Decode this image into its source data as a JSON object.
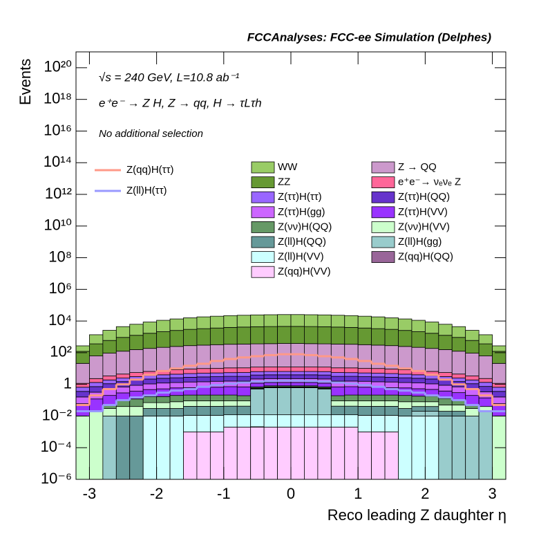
{
  "chart_data": {
    "type": "stacked_histogram",
    "title": "FCCAnalyses: FCC-ee Simulation (Delphes)",
    "annotations": [
      "√s = 240 GeV, L=10.8 ab⁻¹",
      "e⁺e⁻ → Z H, Z → qq, H → τLτh",
      "No additional selection"
    ],
    "xlabel": "Reco leading Z daughter η",
    "ylabel": "Events",
    "log_y": true,
    "bins": [
      -3.2,
      -3,
      -2.8,
      -2.6,
      -2.4,
      -2.2,
      -2,
      -1.8,
      -1.6,
      -1.4,
      -1.2,
      -1,
      -0.8,
      -0.6,
      -0.4,
      -0.2,
      0,
      0.2,
      0.4,
      0.6,
      0.8,
      1,
      1.2,
      1.4,
      1.6,
      1.8,
      2,
      2.2,
      2.4,
      2.6,
      2.8,
      3,
      3.2
    ],
    "xlim": [
      -3.2,
      3.2
    ],
    "xticks": [
      -3,
      -2,
      -1,
      0,
      1,
      2,
      3
    ],
    "ylim": [
      1e-06,
      1e+21
    ],
    "yticks": [
      {
        "value": 1e-06,
        "label": "10⁻⁶"
      },
      {
        "value": 0.0001,
        "label": "10⁻⁴"
      },
      {
        "value": 0.01,
        "label": "10⁻²"
      },
      1,
      {
        "value": 100,
        "label": "10²"
      },
      {
        "value": 10000.0,
        "label": "10⁴"
      },
      {
        "value": 1000000.0,
        "label": "10⁶"
      },
      {
        "value": 100000000.0,
        "label": "10⁸"
      },
      {
        "value": 10000000000.0,
        "label": "10¹⁰"
      },
      {
        "value": 1000000000000.0,
        "label": "10¹²"
      },
      {
        "value": 100000000000000.0,
        "label": "10¹⁴"
      },
      {
        "value": 1e+16,
        "label": "10¹⁶"
      },
      {
        "value": 1e+18,
        "label": "10¹⁸"
      },
      {
        "value": 1e+20,
        "label": "10²⁰"
      }
    ],
    "series": [
      {
        "name": "WW",
        "color": "#99cc66",
        "values": [
          150,
          1000,
          2000,
          3500,
          5000,
          7000,
          9000,
          11000,
          13000,
          15000,
          16500,
          18000,
          19000,
          20000,
          20500,
          21000,
          21000,
          20500,
          20000,
          19000,
          18000,
          16500,
          15000,
          13000,
          11000,
          9000,
          7000,
          5000,
          3500,
          2000,
          1000,
          150
        ]
      },
      {
        "name": "ZZ",
        "color": "#669933",
        "values": [
          100,
          300,
          500,
          800,
          1100,
          1500,
          1900,
          2300,
          2700,
          3000,
          3300,
          3600,
          3800,
          4000,
          4100,
          4200,
          4200,
          4100,
          4000,
          3800,
          3600,
          3300,
          3000,
          2700,
          2300,
          1900,
          1500,
          1100,
          800,
          500,
          300,
          100
        ]
      },
      {
        "name": "Z → QQ",
        "color": "#cc99cc",
        "values": [
          20,
          60,
          90,
          120,
          150,
          180,
          210,
          240,
          270,
          290,
          310,
          330,
          340,
          350,
          360,
          370,
          370,
          360,
          350,
          340,
          330,
          310,
          290,
          270,
          240,
          210,
          180,
          150,
          120,
          90,
          60,
          20
        ]
      },
      {
        "name": "e⁺e⁻→ νₑνₑ Z",
        "color": "#ff6699",
        "values": [
          0.5,
          1,
          1.5,
          2,
          2.5,
          3,
          3.5,
          4,
          4.5,
          5,
          5,
          5.5,
          5.5,
          6,
          6,
          6,
          6,
          6,
          6,
          5.5,
          5.5,
          5,
          5,
          4.5,
          4,
          3.5,
          3,
          2.5,
          2,
          1.5,
          1,
          0.5
        ]
      },
      {
        "name": "Z(ττ)H(ττ)",
        "color": "#9966ff",
        "values": [
          0.3,
          0.6,
          0.8,
          1,
          1.2,
          1.4,
          1.6,
          1.8,
          2,
          2.1,
          2.2,
          2.3,
          2.4,
          2.5,
          2.5,
          2.5,
          2.5,
          2.5,
          2.5,
          2.4,
          2.3,
          2.2,
          2.1,
          2,
          1.8,
          1.6,
          1.4,
          1.2,
          1,
          0.8,
          0.6,
          0.3
        ]
      },
      {
        "name": "Z(ττ)H(QQ)",
        "color": "#6633cc",
        "values": [
          0.2,
          0.4,
          0.6,
          0.8,
          1,
          1.1,
          1.2,
          1.3,
          1.4,
          1.5,
          1.5,
          1.6,
          1.6,
          1.7,
          1.7,
          1.7,
          1.7,
          1.7,
          1.7,
          1.6,
          1.6,
          1.5,
          1.5,
          1.4,
          1.3,
          1.2,
          1.1,
          1,
          0.8,
          0.6,
          0.4,
          0.2
        ]
      },
      {
        "name": "Z(ττ)H(gg)",
        "color": "#cc66ff",
        "values": [
          0.1,
          0.2,
          0.3,
          0.4,
          0.5,
          0.6,
          0.7,
          0.7,
          0.8,
          0.8,
          0.9,
          0.9,
          0.9,
          1,
          1,
          1,
          1,
          1,
          1,
          0.9,
          0.9,
          0.9,
          0.8,
          0.8,
          0.7,
          0.7,
          0.6,
          0.5,
          0.4,
          0.3,
          0.2,
          0.1
        ]
      },
      {
        "name": "Z(ττ)H(VV)",
        "color": "#9933ff",
        "values": [
          0.05,
          0.1,
          0.15,
          0.2,
          0.25,
          0.3,
          0.35,
          0.4,
          0.4,
          0.45,
          0.45,
          0.5,
          0.5,
          0.5,
          0.5,
          0.5,
          0.5,
          0.5,
          0.5,
          0.5,
          0.5,
          0.45,
          0.45,
          0.4,
          0.4,
          0.35,
          0.3,
          0.25,
          0.2,
          0.15,
          0.1,
          0.05
        ]
      },
      {
        "name": "Z(νν)H(QQ)",
        "color": "#669966",
        "values": [
          0,
          0,
          0.02,
          0.05,
          0.08,
          0.1,
          0.1,
          0.12,
          0.12,
          0.12,
          0.12,
          0.12,
          0.1,
          0.1,
          0.12,
          0.12,
          0.12,
          0.12,
          0.1,
          0.1,
          0.12,
          0.12,
          0.12,
          0.12,
          0.12,
          0.1,
          0.1,
          0.08,
          0.05,
          0.02,
          0,
          0
        ]
      },
      {
        "name": "Z(νν)H(VV)",
        "color": "#ccffcc",
        "values": [
          0.01,
          0.02,
          0.02,
          0.03,
          0.03,
          0.04,
          0.04,
          0.05,
          0.05,
          0.05,
          0.05,
          0.05,
          0.05,
          0.05,
          0.05,
          0.05,
          0.05,
          0.05,
          0.05,
          0.05,
          0.05,
          0.05,
          0.05,
          0.05,
          0.05,
          0.04,
          0.04,
          0.03,
          0.03,
          0.02,
          0.02,
          0.01
        ]
      },
      {
        "name": "Z(ll)H(QQ)",
        "color": "#669999",
        "values": [
          0,
          0,
          0,
          0.01,
          0.01,
          0.02,
          0.02,
          0.02,
          0.03,
          0.03,
          0.03,
          0.03,
          0.03,
          0.03,
          0.03,
          0.03,
          0.03,
          0.03,
          0.03,
          0.03,
          0.03,
          0.03,
          0.03,
          0.03,
          0.02,
          0.02,
          0.02,
          0.01,
          0.01,
          0,
          0,
          0
        ]
      },
      {
        "name": "Z(ll)H(gg)",
        "color": "#99cccc",
        "values": [
          0,
          0,
          0.01,
          0,
          0,
          0,
          0,
          0,
          0,
          0,
          0,
          0,
          0,
          0.5,
          0.6,
          0.6,
          0.6,
          0.6,
          0.5,
          0,
          0,
          0,
          0,
          0,
          0,
          0.01,
          0.01,
          0.01,
          0.01,
          0.01,
          0.02,
          0
        ]
      },
      {
        "name": "Z(ll)H(VV)",
        "color": "#ccffff",
        "values": [
          0,
          0,
          0,
          0,
          0,
          0.01,
          0.01,
          0.01,
          0.01,
          0.01,
          0.01,
          0.01,
          0.01,
          0.01,
          0.01,
          0.01,
          0.01,
          0.01,
          0.01,
          0.01,
          0.01,
          0.01,
          0.01,
          0.01,
          0.01,
          0.01,
          0.01,
          0,
          0,
          0,
          0,
          0
        ]
      },
      {
        "name": "Z(qq)H(QQ)",
        "color": "#996699",
        "values": [
          0,
          0,
          0,
          0,
          0,
          0,
          0,
          0,
          0,
          0,
          0,
          0,
          0,
          0.0001,
          0,
          0,
          0,
          0,
          0,
          0,
          0,
          0,
          0,
          0,
          0,
          0,
          0,
          0,
          0,
          0,
          0,
          0
        ]
      },
      {
        "name": "Z(qq)H(VV)",
        "color": "#ffccff",
        "values": [
          0,
          0,
          0,
          0,
          0,
          0,
          0,
          0,
          0.001,
          0.001,
          0.001,
          0.002,
          0.002,
          0.002,
          0.002,
          0.002,
          0.002,
          0.002,
          0.002,
          0.002,
          0.002,
          0.001,
          0.001,
          0.001,
          0,
          0,
          0,
          0,
          0,
          0,
          0,
          0
        ]
      }
    ],
    "lines": [
      {
        "name": "Z(qq)H(ττ)",
        "color": "#ff9988",
        "values": [
          0.05,
          0.2,
          0.5,
          1,
          2,
          4,
          7,
          10,
          15,
          20,
          30,
          40,
          50,
          60,
          70,
          80,
          80,
          70,
          60,
          50,
          40,
          30,
          20,
          15,
          10,
          7,
          4,
          2,
          1,
          0.5,
          0.2,
          0.05
        ]
      },
      {
        "name": "Z(ll)H(ττ)",
        "color": "#9999ff",
        "values": [
          0.02,
          0.02,
          0.05,
          0.1,
          0.15,
          0.2,
          0.3,
          0.4,
          0.5,
          0.7,
          0.9,
          1.1,
          1.3,
          1.5,
          1.6,
          1.7,
          1.7,
          1.6,
          1.5,
          1.3,
          1.1,
          0.9,
          0.7,
          0.5,
          0.4,
          0.3,
          0.2,
          0.15,
          0.1,
          0.05,
          0.02,
          0.02
        ]
      }
    ]
  }
}
